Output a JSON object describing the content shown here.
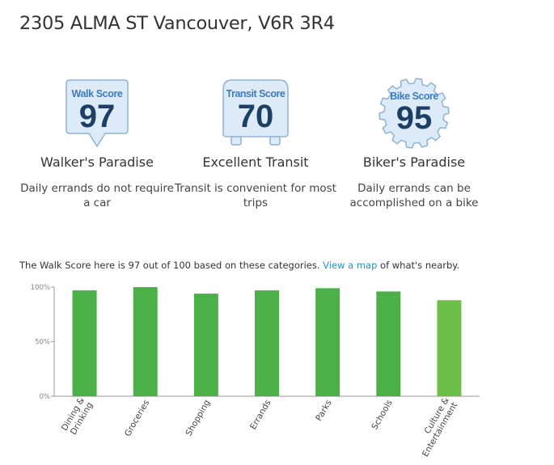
{
  "address": "2305 ALMA ST Vancouver, V6R 3R4",
  "scores": {
    "walk": {
      "label": "Walk Score",
      "value": "97",
      "name": "Walker's Paradise",
      "description": "Daily errands do not require a car"
    },
    "transit": {
      "label": "Transit Score",
      "value": "70",
      "name": "Excellent Transit",
      "description": "Transit is convenient for most trips"
    },
    "bike": {
      "label": "Bike Score",
      "value": "95",
      "name": "Biker's Paradise",
      "description": "Daily errands can be accomplished on a bike"
    }
  },
  "summary": {
    "before": "The Walk Score here is 97 out of 100 based on these categories. ",
    "link": "View a map",
    "after": " of what's nearby."
  },
  "colors": {
    "badge_fill": "#dcebf7",
    "badge_stroke": "#8fb3d6",
    "badge_text": "#1d3f66",
    "badge_label": "#3e7bbd",
    "bar": "#4cb048",
    "bar_light": "#6cc04a",
    "link": "#2a8fbd"
  },
  "chart_data": {
    "type": "bar",
    "categories": [
      "Dining & Drinking",
      "Groceries",
      "Shopping",
      "Errands",
      "Parks",
      "Schools",
      "Culture & Entertainment"
    ],
    "values": [
      97,
      100,
      94,
      97,
      99,
      96,
      88
    ],
    "yticks": [
      "100%",
      "50%",
      "0%"
    ],
    "ylim": [
      0,
      100
    ]
  }
}
